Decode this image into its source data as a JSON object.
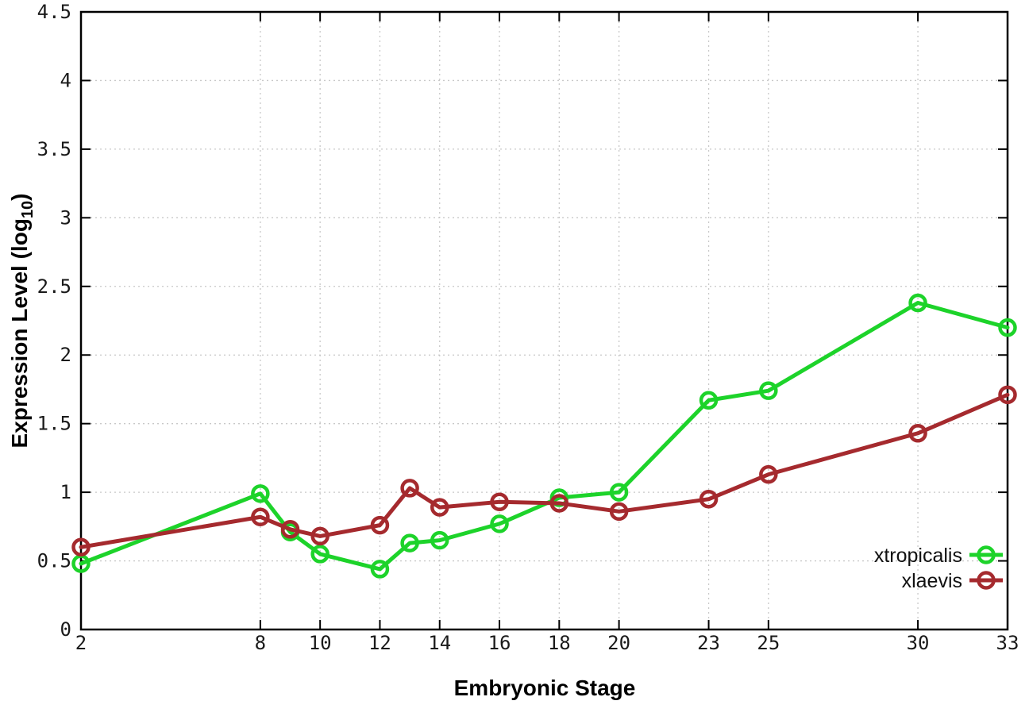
{
  "chart_data": {
    "type": "line",
    "title": "",
    "xlabel": "Embryonic Stage",
    "ylabel": {
      "prefix": "Expression Level (log",
      "subscript": "10",
      "suffix": ")"
    },
    "xlim": [
      2,
      33
    ],
    "ylim": [
      0,
      4.5
    ],
    "x_ticks": [
      2,
      8,
      10,
      12,
      14,
      16,
      18,
      20,
      23,
      25,
      30,
      33
    ],
    "y_ticks": [
      0,
      0.5,
      1,
      1.5,
      2,
      2.5,
      3,
      3.5,
      4,
      4.5
    ],
    "grid": true,
    "legend_position": "bottom-right",
    "x": [
      2,
      8,
      9,
      10,
      12,
      13,
      14,
      16,
      18,
      20,
      23,
      25,
      30,
      33
    ],
    "series": [
      {
        "name": "xtropicalis",
        "color": "#1dd32a",
        "marker": "open-circle",
        "values": [
          0.48,
          0.99,
          0.71,
          0.55,
          0.44,
          0.63,
          0.65,
          0.77,
          0.96,
          1.0,
          1.67,
          1.74,
          2.38,
          2.2
        ]
      },
      {
        "name": "xlaevis",
        "color": "#a52a2e",
        "marker": "open-circle",
        "values": [
          0.6,
          0.82,
          0.73,
          0.68,
          0.76,
          1.03,
          0.89,
          0.93,
          0.92,
          0.86,
          0.95,
          1.13,
          1.43,
          1.71
        ]
      }
    ]
  },
  "colors": {
    "background": "#ffffff",
    "grid": "#c8c8c8",
    "axis": "#000000",
    "tick_label": "#1a1a1a"
  }
}
